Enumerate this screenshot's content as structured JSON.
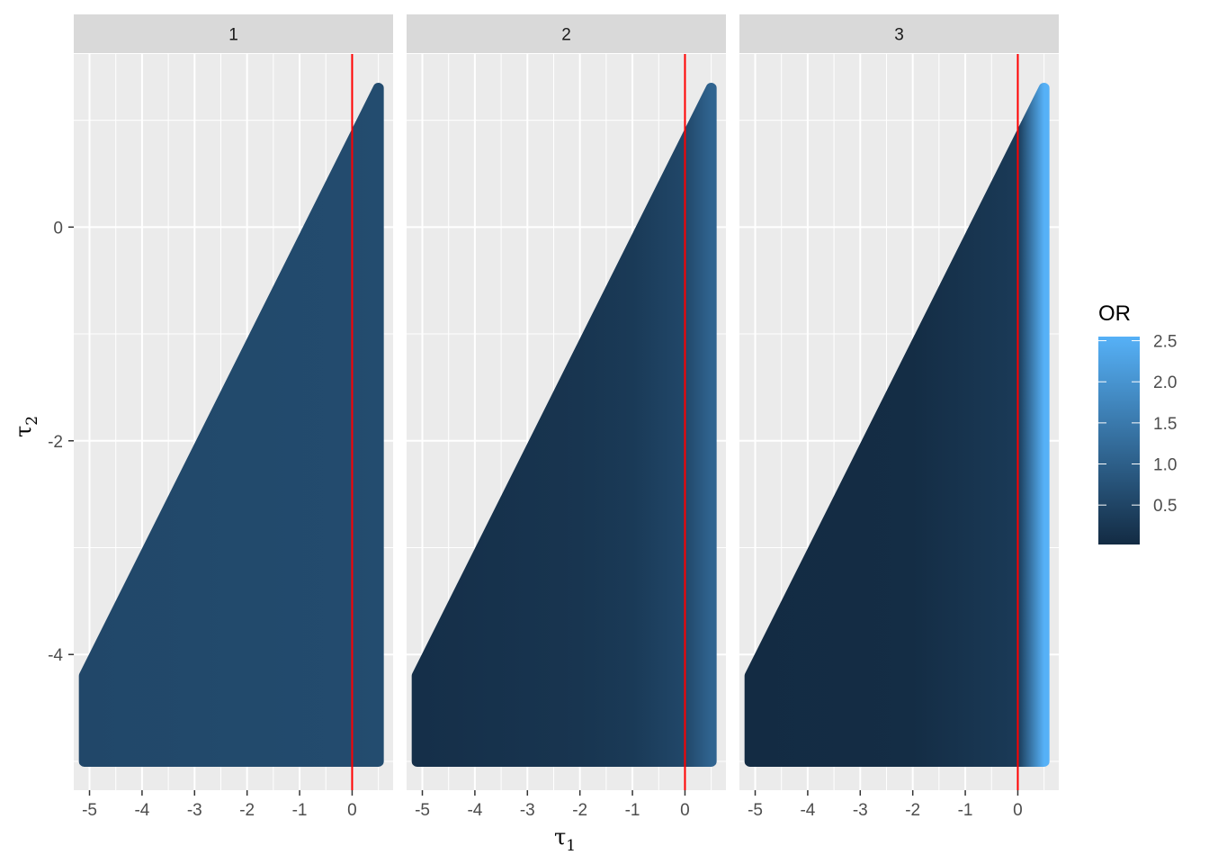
{
  "chart_data": {
    "type": "heatmap",
    "facets": [
      {
        "label": "1",
        "or_at_tau1": [
          [
            -5.0,
            0.55
          ],
          [
            -2.0,
            0.6
          ],
          [
            0.0,
            0.62
          ],
          [
            0.5,
            0.64
          ]
        ]
      },
      {
        "label": "2",
        "or_at_tau1": [
          [
            -5.0,
            0.1
          ],
          [
            -2.0,
            0.2
          ],
          [
            -1.0,
            0.3
          ],
          [
            0.0,
            0.55
          ],
          [
            0.5,
            1.1
          ]
        ]
      },
      {
        "label": "3",
        "or_at_tau1": [
          [
            -5.0,
            0.02
          ],
          [
            -2.0,
            0.05
          ],
          [
            0.0,
            0.3
          ],
          [
            0.5,
            2.55
          ]
        ]
      }
    ],
    "region": {
      "description_points": [
        [
          -5.1,
          -4.2
        ],
        [
          0.5,
          1.3
        ]
      ],
      "tau2_min": -5.0,
      "tau1_max": 0.5
    },
    "reference_line": {
      "tau1": 0,
      "color": "#ff0000"
    },
    "x_axis": {
      "label_main": "τ",
      "label_sub": "1",
      "ticks": [
        -5,
        -4,
        -3,
        -2,
        -1,
        0
      ],
      "tick_labels": [
        "-5",
        "-4",
        "-3",
        "-2",
        "-1",
        "0"
      ],
      "range": [
        -5.3,
        0.78
      ]
    },
    "y_axis": {
      "label_main": "τ",
      "label_sub": "2",
      "ticks": [
        0,
        -2,
        -4
      ],
      "tick_labels": [
        "0",
        "-2",
        "-4"
      ],
      "range": [
        -5.27,
        1.62
      ]
    },
    "legend": {
      "title": "OR",
      "placement": "right",
      "ticks": [
        0.5,
        1.0,
        1.5,
        2.0,
        2.5
      ],
      "tick_labels": [
        "0.5",
        "1.0",
        "1.5",
        "2.0",
        "2.5"
      ],
      "range": [
        0.02,
        2.55
      ],
      "color_low": "#132B43",
      "color_high": "#56B1F7"
    },
    "grid": true,
    "panel_background": "#EBEBEB",
    "strip_background": "#D9D9D9"
  }
}
